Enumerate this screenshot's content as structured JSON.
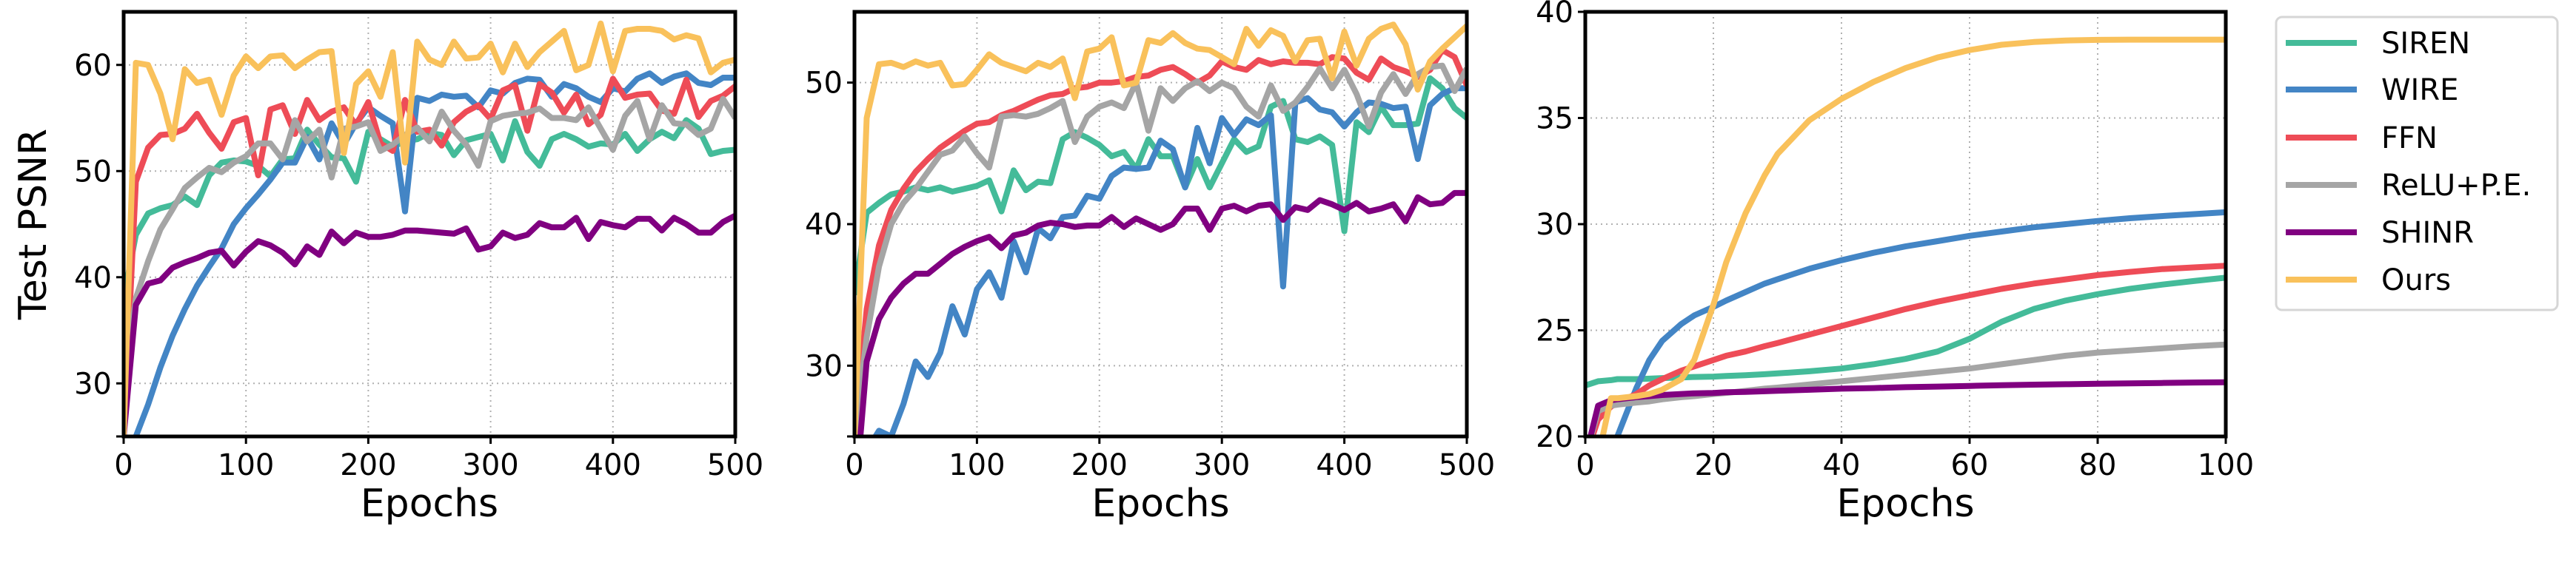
{
  "figure": {
    "ylabel": "Test PSNR",
    "xlabel": "Epochs"
  },
  "legend": {
    "items": [
      {
        "label": "SIREN",
        "color": "#44bb99"
      },
      {
        "label": "WIRE",
        "color": "#4385c5"
      },
      {
        "label": "FFN",
        "color": "#ee4c57"
      },
      {
        "label": "ReLU+P.E.",
        "color": "#a5a5a5"
      },
      {
        "label": "SHINR",
        "color": "#800080"
      },
      {
        "label": "Ours",
        "color": "#f9c15b"
      }
    ]
  },
  "chart_data": [
    {
      "type": "line",
      "title": "",
      "xlabel": "Epochs",
      "ylabel": "Test PSNR",
      "xlim": [
        0,
        500
      ],
      "ylim": [
        25,
        65
      ],
      "xticks": [
        0,
        100,
        200,
        300,
        400,
        500
      ],
      "yticks": [
        30,
        40,
        50,
        60
      ],
      "grid": true,
      "x": [
        0,
        10,
        20,
        30,
        40,
        50,
        60,
        70,
        80,
        90,
        100,
        110,
        120,
        130,
        140,
        150,
        160,
        170,
        180,
        190,
        200,
        210,
        220,
        230,
        240,
        250,
        260,
        270,
        280,
        290,
        300,
        310,
        320,
        330,
        340,
        350,
        360,
        370,
        380,
        390,
        400,
        410,
        420,
        430,
        440,
        450,
        460,
        470,
        480,
        490,
        500
      ],
      "series": [
        {
          "name": "SIREN",
          "color": "#44bb99",
          "values": [
            38,
            44,
            46,
            46.5,
            46.8,
            47.6,
            46.8,
            49.6,
            50.8,
            51,
            50.9,
            50.5,
            49.5,
            51.1,
            51.2,
            53.9,
            52.5,
            51.3,
            51.2,
            49,
            53.7,
            53,
            52.3,
            52.8,
            53,
            53.6,
            53.4,
            51.5,
            52.9,
            53.2,
            53.5,
            51,
            54.7,
            51.8,
            50.5,
            53,
            53.5,
            53,
            52.3,
            52.6,
            52.5,
            53.5,
            51.9,
            53,
            53.7,
            53.1,
            54.8,
            54,
            51.6,
            51.9,
            52
          ]
        },
        {
          "name": "WIRE",
          "color": "#4385c5",
          "values": [
            22,
            25,
            28,
            31.5,
            34.5,
            37,
            39.2,
            41,
            42.7,
            45,
            46.5,
            47.8,
            49.2,
            50.8,
            50.8,
            53.2,
            51.1,
            54.5,
            52.5,
            54.5,
            56,
            55.2,
            54.5,
            46.2,
            56.9,
            56.6,
            57.2,
            57,
            57.1,
            56,
            57.6,
            57.3,
            58.3,
            58.7,
            58.6,
            57,
            58.2,
            57.8,
            57,
            56.5,
            57.8,
            57.5,
            58.7,
            59.2,
            58.3,
            58.9,
            59.2,
            58.3,
            58.1,
            58.8,
            58.8
          ]
        },
        {
          "name": "FFN",
          "color": "#ee4c57",
          "values": [
            25,
            49,
            52.2,
            53.4,
            53.5,
            54,
            55.4,
            53.6,
            52.1,
            54.6,
            55,
            49.6,
            55.8,
            56.2,
            53.5,
            56.7,
            54.8,
            55.6,
            56,
            54.3,
            56.5,
            52.6,
            51.9,
            56.7,
            53.7,
            53.9,
            52.4,
            54.6,
            55.6,
            56.2,
            54.9,
            57.6,
            58.1,
            53.8,
            58.2,
            57.4,
            55.5,
            57.2,
            54.4,
            55.3,
            58.7,
            56.9,
            57.2,
            57.3,
            55.7,
            55.4,
            58.6,
            55.1,
            56.6,
            57.1,
            58
          ]
        },
        {
          "name": "ReLU+P.E.",
          "color": "#a5a5a5",
          "values": [
            30,
            38,
            41.5,
            44.5,
            46.4,
            48.4,
            49.4,
            50.3,
            49.9,
            50.8,
            51.4,
            52.6,
            52.6,
            51.1,
            54.8,
            52.8,
            53.9,
            49.4,
            54,
            54.2,
            54.6,
            51.9,
            52.5,
            53.4,
            54.1,
            52.8,
            55.6,
            53.8,
            52.5,
            50.5,
            54.7,
            55.2,
            55.4,
            55.5,
            55.9,
            55,
            55,
            54.8,
            56,
            54,
            52,
            55.2,
            56.6,
            53,
            56.2,
            54.5,
            54.4,
            53.4,
            54,
            56.8,
            55
          ]
        },
        {
          "name": "SHINR",
          "color": "#800080",
          "values": [
            25,
            37.4,
            39.4,
            39.7,
            40.9,
            41.4,
            41.8,
            42.3,
            42.5,
            41.1,
            42.4,
            43.4,
            43,
            42.3,
            41.2,
            42.9,
            42.1,
            44.3,
            43.2,
            44.2,
            43.8,
            43.8,
            44,
            44.4,
            44.4,
            44.3,
            44.2,
            44.1,
            44.6,
            42.6,
            42.9,
            44.2,
            43.7,
            44,
            45.1,
            44.7,
            44.7,
            45.6,
            43.6,
            45.2,
            44.9,
            44.7,
            45.5,
            45.5,
            44.4,
            45.6,
            45,
            44.2,
            44.2,
            45.2,
            45.8
          ]
        },
        {
          "name": "Ours",
          "color": "#f9c15b",
          "values": [
            25,
            60.2,
            60,
            57.3,
            53,
            59.6,
            58.3,
            58.6,
            55.3,
            59,
            60.8,
            59.7,
            60.8,
            60.9,
            59.7,
            60.5,
            61.2,
            61.3,
            51.7,
            58.2,
            59.4,
            57,
            61.2,
            50.8,
            62.2,
            60.5,
            60,
            62.2,
            60.6,
            60.7,
            62,
            59.3,
            62,
            59.8,
            61.2,
            62.2,
            63.2,
            59.5,
            60,
            63.9,
            59.4,
            63.2,
            63.4,
            63.4,
            63.2,
            62.4,
            62.8,
            62.5,
            59.3,
            60.2,
            60.5
          ]
        }
      ]
    },
    {
      "type": "line",
      "title": "",
      "xlabel": "Epochs",
      "ylabel": "",
      "xlim": [
        0,
        500
      ],
      "ylim": [
        25,
        55
      ],
      "xticks": [
        0,
        100,
        200,
        300,
        400,
        500
      ],
      "yticks": [
        30,
        40,
        50
      ],
      "grid": true,
      "x": [
        0,
        10,
        20,
        30,
        40,
        50,
        60,
        70,
        80,
        90,
        100,
        110,
        120,
        130,
        140,
        150,
        160,
        170,
        180,
        190,
        200,
        210,
        220,
        230,
        240,
        250,
        260,
        270,
        280,
        290,
        300,
        310,
        320,
        330,
        340,
        350,
        360,
        370,
        380,
        390,
        400,
        410,
        420,
        430,
        440,
        450,
        460,
        470,
        480,
        490,
        500
      ],
      "series": [
        {
          "name": "SIREN",
          "color": "#44bb99",
          "values": [
            35,
            40.8,
            41.5,
            42.1,
            42.3,
            42.6,
            42.4,
            42.6,
            42.3,
            42.5,
            42.7,
            43.1,
            40.9,
            43.8,
            42.4,
            43,
            42.9,
            46,
            46.5,
            46.1,
            45.6,
            44.8,
            45.1,
            43.9,
            46,
            44.8,
            44.8,
            42.6,
            44.6,
            42.6,
            44.3,
            46,
            45.1,
            45.5,
            48.3,
            48.7,
            46,
            45.8,
            46.2,
            45.6,
            39.5,
            47.2,
            46.5,
            48.3,
            47,
            47,
            47.1,
            50.3,
            49.6,
            48.2,
            47.5
          ]
        },
        {
          "name": "WIRE",
          "color": "#4385c5",
          "values": [
            20,
            24,
            25.4,
            25,
            27.3,
            30.3,
            29.2,
            30.9,
            34.2,
            32.2,
            35.4,
            36.6,
            34.8,
            38.8,
            36.6,
            39.7,
            39,
            40.5,
            40.6,
            42,
            41.8,
            43.4,
            44,
            43.9,
            44,
            45.9,
            45.3,
            42.6,
            46.8,
            44.3,
            47.5,
            46.3,
            47.4,
            47,
            47.7,
            35.6,
            48.6,
            48.9,
            48.1,
            47.9,
            46.9,
            47.9,
            48.6,
            48.5,
            48.2,
            48.3,
            44.6,
            48.4,
            49.2,
            49.6,
            49.6
          ]
        },
        {
          "name": "FFN",
          "color": "#ee4c57",
          "values": [
            25,
            34,
            38.5,
            41,
            42.5,
            43.7,
            44.6,
            45.4,
            46,
            46.6,
            47.1,
            47.2,
            47.7,
            48,
            48.4,
            48.8,
            49.1,
            49.2,
            49.6,
            49.7,
            50,
            50,
            50.1,
            50.4,
            50.5,
            50.9,
            51.1,
            50.6,
            50,
            50.5,
            51.5,
            51.1,
            50.9,
            51.6,
            51.3,
            51.5,
            51.4,
            51.4,
            51.3,
            51.8,
            51.7,
            50.7,
            50.2,
            51.7,
            51.1,
            50.8,
            50.4,
            50.9,
            52.3,
            51.8,
            49.8
          ]
        },
        {
          "name": "ReLU+P.E.",
          "color": "#a5a5a5",
          "values": [
            25,
            32,
            37,
            40,
            41.5,
            42.5,
            43.7,
            44.9,
            45.2,
            46.2,
            45,
            44,
            47.6,
            47.7,
            47.6,
            47.8,
            48.2,
            48.7,
            45.8,
            47.6,
            48.3,
            48.6,
            48.2,
            50,
            46.6,
            49.6,
            48.7,
            49.6,
            50.1,
            49.4,
            50,
            49.6,
            48.3,
            47.6,
            49.8,
            48,
            48.6,
            49.7,
            51,
            49.6,
            50.9,
            49.2,
            46.9,
            49.3,
            50.6,
            49.2,
            50.6,
            51.1,
            51.2,
            49.4,
            51
          ]
        },
        {
          "name": "SHINR",
          "color": "#800080",
          "values": [
            20,
            30.3,
            33.3,
            34.8,
            35.8,
            36.5,
            36.5,
            37.2,
            37.9,
            38.4,
            38.8,
            39.1,
            38.3,
            39.2,
            39.4,
            39.9,
            40.1,
            40,
            39.8,
            39.9,
            39.9,
            40.5,
            39.8,
            40.4,
            40,
            39.6,
            40,
            41.1,
            41.1,
            39.6,
            41.1,
            41.3,
            40.9,
            41.3,
            41.4,
            40.3,
            41.2,
            41,
            41.7,
            41.4,
            41,
            41.5,
            40.9,
            41.1,
            41.4,
            40.2,
            41.9,
            41.4,
            41.5,
            42.2,
            42.2
          ]
        },
        {
          "name": "Ours",
          "color": "#f9c15b",
          "values": [
            25,
            47.5,
            51.3,
            51.4,
            51.1,
            51.5,
            51.2,
            51.4,
            49.8,
            49.9,
            50.9,
            52,
            51.4,
            51.1,
            50.8,
            51.4,
            51.1,
            51.7,
            48.9,
            52.2,
            52.4,
            53.2,
            49.8,
            50,
            53,
            52.8,
            53.5,
            52.8,
            52.4,
            52.3,
            51.8,
            51.3,
            53.8,
            52.6,
            53.7,
            53.3,
            51.5,
            53,
            53.1,
            50.3,
            53.6,
            51.2,
            53.1,
            53.8,
            54.1,
            52.7,
            49.5,
            51.5,
            52.4,
            53.2,
            54
          ]
        }
      ]
    },
    {
      "type": "line",
      "title": "",
      "xlabel": "Epochs",
      "ylabel": "",
      "xlim": [
        0,
        100
      ],
      "ylim": [
        20,
        40
      ],
      "xticks": [
        0,
        20,
        40,
        60,
        80,
        100
      ],
      "yticks": [
        20,
        25,
        30,
        35,
        40
      ],
      "grid": true,
      "x": [
        0,
        2,
        4,
        5,
        8,
        10,
        12,
        15,
        17,
        20,
        22,
        25,
        28,
        30,
        35,
        40,
        45,
        50,
        55,
        60,
        65,
        70,
        75,
        80,
        85,
        90,
        95,
        100
      ],
      "series": [
        {
          "name": "SIREN",
          "color": "#44bb99",
          "values": [
            22.4,
            22.6,
            22.65,
            22.7,
            22.7,
            22.72,
            22.75,
            22.78,
            22.8,
            22.82,
            22.85,
            22.88,
            22.93,
            22.97,
            23.07,
            23.2,
            23.4,
            23.65,
            24.0,
            24.6,
            25.4,
            26.0,
            26.4,
            26.7,
            26.95,
            27.15,
            27.32,
            27.48
          ]
        },
        {
          "name": "WIRE",
          "color": "#4385c5",
          "values": [
            19,
            19,
            19.5,
            20,
            22.3,
            23.6,
            24.5,
            25.3,
            25.7,
            26.1,
            26.4,
            26.8,
            27.2,
            27.4,
            27.9,
            28.3,
            28.65,
            28.95,
            29.2,
            29.45,
            29.65,
            29.85,
            30.0,
            30.15,
            30.28,
            30.38,
            30.47,
            30.56
          ]
        },
        {
          "name": "FFN",
          "color": "#ee4c57",
          "values": [
            19,
            20.8,
            21.4,
            21.6,
            22.0,
            22.4,
            22.7,
            23.1,
            23.3,
            23.6,
            23.8,
            24.0,
            24.25,
            24.4,
            24.8,
            25.2,
            25.6,
            26.0,
            26.35,
            26.65,
            26.95,
            27.2,
            27.4,
            27.6,
            27.75,
            27.88,
            27.96,
            28.04
          ]
        },
        {
          "name": "ReLU+P.E.",
          "color": "#a5a5a5",
          "values": [
            19,
            21.2,
            21.45,
            21.5,
            21.6,
            21.65,
            21.75,
            21.85,
            21.9,
            22.0,
            22.05,
            22.15,
            22.25,
            22.3,
            22.45,
            22.6,
            22.75,
            22.9,
            23.05,
            23.2,
            23.4,
            23.6,
            23.8,
            23.95,
            24.05,
            24.15,
            24.25,
            24.33
          ]
        },
        {
          "name": "SHINR",
          "color": "#800080",
          "values": [
            19,
            21.45,
            21.7,
            21.75,
            21.85,
            21.9,
            21.95,
            22.0,
            22.03,
            22.05,
            22.08,
            22.1,
            22.13,
            22.15,
            22.2,
            22.25,
            22.28,
            22.32,
            22.35,
            22.38,
            22.41,
            22.44,
            22.46,
            22.48,
            22.5,
            22.52,
            22.54,
            22.55
          ]
        },
        {
          "name": "Ours",
          "color": "#f9c15b",
          "values": [
            19,
            19,
            21.8,
            21.8,
            21.9,
            22.0,
            22.2,
            22.7,
            23.6,
            26.2,
            28.2,
            30.5,
            32.3,
            33.3,
            34.9,
            35.9,
            36.7,
            37.35,
            37.85,
            38.2,
            38.45,
            38.58,
            38.65,
            38.68,
            38.69,
            38.69,
            38.69,
            38.69
          ]
        }
      ]
    }
  ]
}
